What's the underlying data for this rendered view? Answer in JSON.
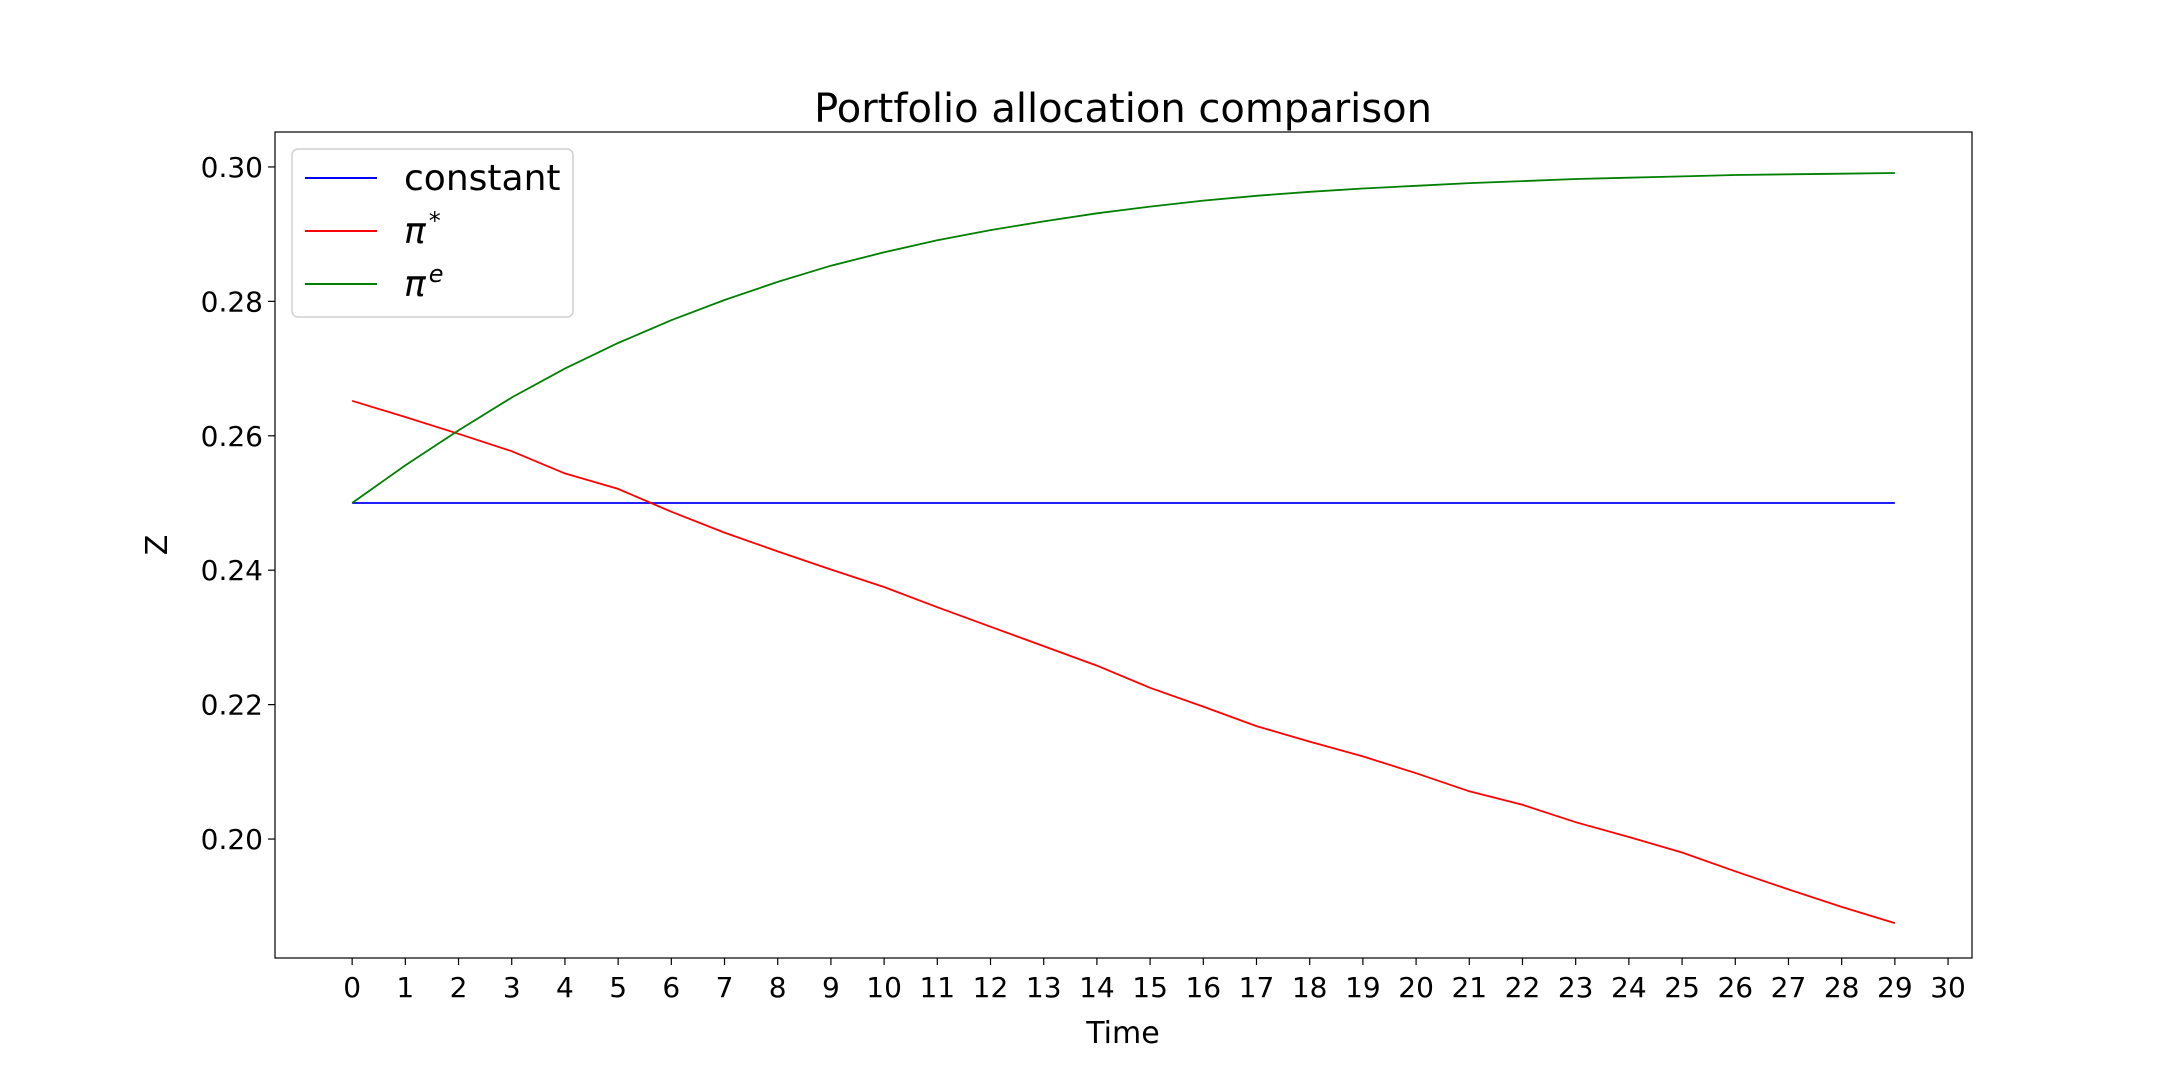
{
  "chart_data": {
    "type": "line",
    "title": "Portfolio allocation comparison",
    "xlabel": "Time",
    "ylabel": "Z",
    "xlim": [
      -1.45,
      30.45
    ],
    "ylim": [
      0.1823,
      0.3052
    ],
    "xticks": [
      0,
      1,
      2,
      3,
      4,
      5,
      6,
      7,
      8,
      9,
      10,
      11,
      12,
      13,
      14,
      15,
      16,
      17,
      18,
      19,
      20,
      21,
      22,
      23,
      24,
      25,
      26,
      27,
      28,
      29,
      30
    ],
    "yticks": [
      0.2,
      0.22,
      0.24,
      0.26,
      0.28,
      0.3
    ],
    "ytick_labels": [
      "0.20",
      "0.22",
      "0.24",
      "0.26",
      "0.28",
      "0.30"
    ],
    "grid": false,
    "legend_position": "top-left",
    "x": [
      0,
      1,
      2,
      3,
      4,
      5,
      6,
      7,
      8,
      9,
      10,
      11,
      12,
      13,
      14,
      15,
      16,
      17,
      18,
      19,
      20,
      21,
      22,
      23,
      24,
      25,
      26,
      27,
      28,
      29
    ],
    "series": [
      {
        "name": "constant",
        "color": "#0000ff",
        "values": [
          0.25,
          0.25,
          0.25,
          0.25,
          0.25,
          0.25,
          0.25,
          0.25,
          0.25,
          0.25,
          0.25,
          0.25,
          0.25,
          0.25,
          0.25,
          0.25,
          0.25,
          0.25,
          0.25,
          0.25,
          0.25,
          0.25,
          0.25,
          0.25,
          0.25,
          0.25,
          0.25,
          0.25,
          0.25,
          0.25
        ]
      },
      {
        "name": "π",
        "name_sup": "*",
        "color": "#ff0000",
        "values": [
          0.2652,
          0.2628,
          0.2603,
          0.2577,
          0.2544,
          0.2521,
          0.2487,
          0.2456,
          0.2428,
          0.2401,
          0.2375,
          0.2345,
          0.2316,
          0.2287,
          0.2258,
          0.2225,
          0.2197,
          0.2168,
          0.2145,
          0.2123,
          0.2098,
          0.2071,
          0.2051,
          0.2025,
          0.2003,
          0.198,
          0.1952,
          0.1925,
          0.1899,
          0.1875
        ]
      },
      {
        "name": "π",
        "name_sup": "e",
        "color": "#008000",
        "values": [
          0.25,
          0.2556,
          0.2608,
          0.2657,
          0.27,
          0.2738,
          0.2772,
          0.2802,
          0.2829,
          0.2853,
          0.2873,
          0.2891,
          0.2906,
          0.2919,
          0.2931,
          0.2941,
          0.295,
          0.2957,
          0.2963,
          0.2968,
          0.2972,
          0.2976,
          0.2979,
          0.2982,
          0.2984,
          0.2986,
          0.2988,
          0.2989,
          0.299,
          0.2991
        ]
      }
    ]
  }
}
